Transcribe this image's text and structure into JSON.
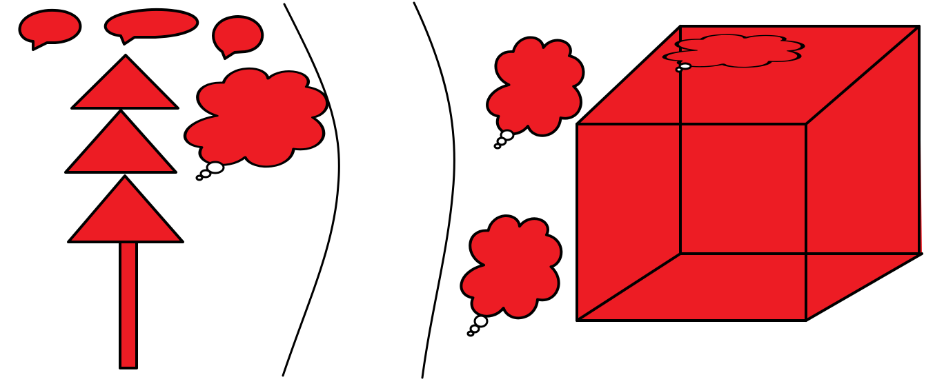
{
  "colors": {
    "fill": "#ed1c24",
    "stroke": "#000000",
    "background": "#ffffff",
    "bubble_tail_fill": "#ffffff"
  },
  "icons": {
    "speech_bubbles": [
      "speech-bubble-icon",
      "speech-bubble-icon",
      "speech-bubble-icon"
    ],
    "thought_clouds": [
      "thought-cloud-icon",
      "thought-cloud-icon",
      "thought-cloud-icon",
      "thought-cloud-icon"
    ],
    "tree": "tree-icon",
    "cube": "cube-icon"
  }
}
